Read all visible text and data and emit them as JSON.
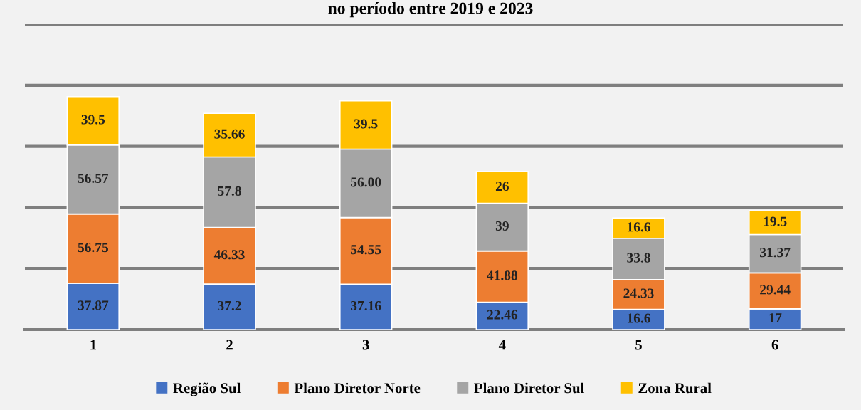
{
  "chart_data": {
    "type": "bar",
    "stacked": true,
    "title": "no período entre 2019 e 2023",
    "categories": [
      "1",
      "2",
      "3",
      "4",
      "5",
      "6"
    ],
    "series": [
      {
        "name": "Região Sul",
        "color": "#4472c4",
        "values": [
          37.87,
          37.2,
          37.16,
          22.46,
          16.6,
          17
        ],
        "value_labels": [
          "37.87",
          "37.2",
          "37.16",
          "22.46",
          "16.6",
          "17"
        ]
      },
      {
        "name": "Plano Diretor Norte",
        "color": "#ed7d31",
        "values": [
          56.75,
          46.33,
          54.55,
          41.88,
          24.33,
          29.44
        ],
        "value_labels": [
          "56.75",
          "46.33",
          "54.55",
          "41.88",
          "24.33",
          "29.44"
        ]
      },
      {
        "name": "Plano Diretor Sul",
        "color": "#a5a5a5",
        "values": [
          56.57,
          57.8,
          56.0,
          39,
          33.8,
          31.37
        ],
        "value_labels": [
          "56.57",
          "57.8",
          "56.00",
          "39",
          "33.8",
          "31.37"
        ]
      },
      {
        "name": "Zona Rural",
        "color": "#ffc000",
        "values": [
          39.5,
          35.66,
          39.5,
          26,
          16.6,
          19.5
        ],
        "value_labels": [
          "39.5",
          "35.66",
          "39.5",
          "26",
          "16.6",
          "19.5"
        ]
      }
    ],
    "ylim": [
      0,
      250
    ],
    "yticks": [
      0,
      50,
      100,
      150,
      200,
      250
    ],
    "tick_labels": "x",
    "grid": "y",
    "legend": "bottom"
  }
}
